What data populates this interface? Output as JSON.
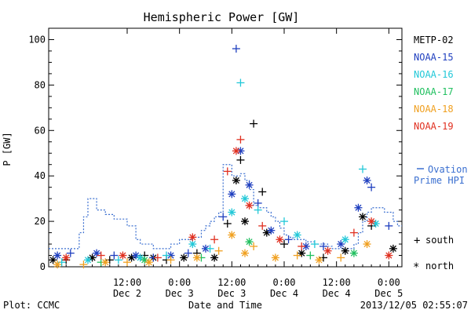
{
  "chart_data": {
    "type": "scatter",
    "title": "Hemispheric Power [GW]",
    "ylabel": "P [GW]",
    "xlabel": "Date and Time",
    "ylim": [
      0,
      105
    ],
    "xlim": [
      "2013-12-01 18:00",
      "2013-12-05 03:00"
    ],
    "yticks": [
      0,
      20,
      40,
      60,
      80,
      100
    ],
    "xticks": [
      {
        "t": "2013-12-02 12:00",
        "top": "12:00",
        "bottom": "Dec 2"
      },
      {
        "t": "2013-12-03 00:00",
        "top": "0:00",
        "bottom": "Dec 3"
      },
      {
        "t": "2013-12-03 12:00",
        "top": "12:00",
        "bottom": "Dec 3"
      },
      {
        "t": "2013-12-04 00:00",
        "top": "0:00",
        "bottom": "Dec 4"
      },
      {
        "t": "2013-12-04 12:00",
        "top": "12:00",
        "bottom": "Dec 4"
      },
      {
        "t": "2013-12-05 00:00",
        "top": "0:00",
        "bottom": "Dec 5"
      }
    ],
    "legend_position": "right",
    "marker_legend": {
      "south": "south",
      "north": "north"
    },
    "ovation_label_line1": "Ovation",
    "ovation_label_line2": "Prime HPI",
    "ovation_color": "#3a6fd0",
    "ovation_series": {
      "x": [
        "2013-12-01 18:00",
        "2013-12-02 00:00",
        "2013-12-02 01:00",
        "2013-12-02 02:00",
        "2013-12-02 03:00",
        "2013-12-02 04:00",
        "2013-12-02 05:00",
        "2013-12-02 06:00",
        "2013-12-02 07:00",
        "2013-12-02 08:00",
        "2013-12-02 09:00",
        "2013-12-02 10:00",
        "2013-12-02 11:00",
        "2013-12-02 12:00",
        "2013-12-02 13:00",
        "2013-12-02 14:00",
        "2013-12-02 15:00",
        "2013-12-02 16:00",
        "2013-12-02 17:00",
        "2013-12-02 18:00",
        "2013-12-02 19:00",
        "2013-12-02 20:00",
        "2013-12-02 21:00",
        "2013-12-02 22:00",
        "2013-12-02 23:00",
        "2013-12-03 00:00",
        "2013-12-03 01:00",
        "2013-12-03 02:00",
        "2013-12-03 03:00",
        "2013-12-03 04:00",
        "2013-12-03 05:00",
        "2013-12-03 06:00",
        "2013-12-03 07:00",
        "2013-12-03 08:00",
        "2013-12-03 09:00",
        "2013-12-03 10:00",
        "2013-12-03 11:00",
        "2013-12-03 12:00",
        "2013-12-03 13:00",
        "2013-12-03 14:00",
        "2013-12-03 15:00",
        "2013-12-03 16:00",
        "2013-12-03 17:00",
        "2013-12-03 18:00",
        "2013-12-03 19:00",
        "2013-12-03 20:00",
        "2013-12-03 21:00",
        "2013-12-03 22:00",
        "2013-12-03 23:00",
        "2013-12-04 00:00",
        "2013-12-04 01:00",
        "2013-12-04 02:00",
        "2013-12-04 03:00",
        "2013-12-04 04:00",
        "2013-12-04 05:00",
        "2013-12-04 06:00",
        "2013-12-04 07:00",
        "2013-12-04 08:00",
        "2013-12-04 09:00",
        "2013-12-04 10:00",
        "2013-12-04 11:00",
        "2013-12-04 12:00",
        "2013-12-04 13:00",
        "2013-12-04 14:00",
        "2013-12-04 15:00",
        "2013-12-04 16:00",
        "2013-12-04 17:00",
        "2013-12-04 18:00",
        "2013-12-04 19:00",
        "2013-12-04 20:00",
        "2013-12-04 21:00",
        "2013-12-04 22:00",
        "2013-12-04 23:00",
        "2013-12-05 00:00",
        "2013-12-05 01:00",
        "2013-12-05 02:00"
      ],
      "y": [
        8,
        8,
        15,
        22,
        30,
        30,
        25,
        25,
        23,
        23,
        21,
        21,
        21,
        18,
        18,
        12,
        10,
        10,
        10,
        8,
        8,
        8,
        8,
        10,
        10,
        12,
        12,
        12,
        13,
        13,
        16,
        18,
        20,
        22,
        24,
        45,
        45,
        40,
        40,
        41,
        38,
        34,
        27,
        26,
        26,
        24,
        22,
        20,
        17,
        14,
        13,
        12,
        12,
        12,
        11,
        11,
        10,
        10,
        10,
        9,
        8,
        8,
        8,
        8,
        8,
        10,
        15,
        20,
        24,
        26,
        26,
        26,
        24,
        24,
        20,
        18
      ]
    },
    "series": [
      {
        "name": "METP-02",
        "color": "#000000",
        "points": [
          {
            "t": "2013-12-01 19:00",
            "y": 3,
            "m": "star"
          },
          {
            "t": "2013-12-01 22:00",
            "y": 3,
            "m": "plus"
          },
          {
            "t": "2013-12-02 04:00",
            "y": 4,
            "m": "star"
          },
          {
            "t": "2013-12-02 08:00",
            "y": 3,
            "m": "plus"
          },
          {
            "t": "2013-12-02 13:00",
            "y": 4,
            "m": "star"
          },
          {
            "t": "2013-12-02 16:00",
            "y": 5,
            "m": "plus"
          },
          {
            "t": "2013-12-02 18:00",
            "y": 4,
            "m": "star"
          },
          {
            "t": "2013-12-02 21:00",
            "y": 3,
            "m": "plus"
          },
          {
            "t": "2013-12-03 01:00",
            "y": 4,
            "m": "star"
          },
          {
            "t": "2013-12-03 04:00",
            "y": 6,
            "m": "plus"
          },
          {
            "t": "2013-12-03 08:00",
            "y": 4,
            "m": "star"
          },
          {
            "t": "2013-12-03 11:00",
            "y": 19,
            "m": "plus"
          },
          {
            "t": "2013-12-03 13:00",
            "y": 38,
            "m": "star"
          },
          {
            "t": "2013-12-03 14:00",
            "y": 47,
            "m": "plus"
          },
          {
            "t": "2013-12-03 15:00",
            "y": 20,
            "m": "star"
          },
          {
            "t": "2013-12-03 17:00",
            "y": 63,
            "m": "plus"
          },
          {
            "t": "2013-12-03 19:00",
            "y": 33,
            "m": "plus"
          },
          {
            "t": "2013-12-03 20:00",
            "y": 15,
            "m": "star"
          },
          {
            "t": "2013-12-04 00:00",
            "y": 10,
            "m": "plus"
          },
          {
            "t": "2013-12-04 04:00",
            "y": 6,
            "m": "star"
          },
          {
            "t": "2013-12-04 09:00",
            "y": 4,
            "m": "plus"
          },
          {
            "t": "2013-12-04 14:00",
            "y": 7,
            "m": "star"
          },
          {
            "t": "2013-12-04 18:00",
            "y": 22,
            "m": "star"
          },
          {
            "t": "2013-12-04 20:00",
            "y": 18,
            "m": "plus"
          },
          {
            "t": "2013-12-05 01:00",
            "y": 8,
            "m": "star"
          }
        ]
      },
      {
        "name": "NOAA-15",
        "color": "#1f3fbf",
        "points": [
          {
            "t": "2013-12-01 20:00",
            "y": 5,
            "m": "star"
          },
          {
            "t": "2013-12-01 23:00",
            "y": 6,
            "m": "plus"
          },
          {
            "t": "2013-12-02 05:00",
            "y": 6,
            "m": "star"
          },
          {
            "t": "2013-12-02 09:00",
            "y": 5,
            "m": "plus"
          },
          {
            "t": "2013-12-02 14:00",
            "y": 5,
            "m": "star"
          },
          {
            "t": "2013-12-02 18:00",
            "y": 4,
            "m": "plus"
          },
          {
            "t": "2013-12-02 22:00",
            "y": 5,
            "m": "star"
          },
          {
            "t": "2013-12-03 02:00",
            "y": 6,
            "m": "plus"
          },
          {
            "t": "2013-12-03 06:00",
            "y": 8,
            "m": "star"
          },
          {
            "t": "2013-12-03 10:00",
            "y": 22,
            "m": "plus"
          },
          {
            "t": "2013-12-03 12:00",
            "y": 32,
            "m": "star"
          },
          {
            "t": "2013-12-03 13:00",
            "y": 96,
            "m": "plus"
          },
          {
            "t": "2013-12-03 14:00",
            "y": 51,
            "m": "star"
          },
          {
            "t": "2013-12-03 16:00",
            "y": 36,
            "m": "star"
          },
          {
            "t": "2013-12-03 18:00",
            "y": 28,
            "m": "plus"
          },
          {
            "t": "2013-12-03 21:00",
            "y": 16,
            "m": "star"
          },
          {
            "t": "2013-12-04 01:00",
            "y": 12,
            "m": "plus"
          },
          {
            "t": "2013-12-04 05:00",
            "y": 9,
            "m": "star"
          },
          {
            "t": "2013-12-04 09:00",
            "y": 9,
            "m": "plus"
          },
          {
            "t": "2013-12-04 13:00",
            "y": 10,
            "m": "star"
          },
          {
            "t": "2013-12-04 17:00",
            "y": 26,
            "m": "star"
          },
          {
            "t": "2013-12-04 19:00",
            "y": 38,
            "m": "star"
          },
          {
            "t": "2013-12-04 20:00",
            "y": 35,
            "m": "plus"
          },
          {
            "t": "2013-12-05 00:00",
            "y": 18,
            "m": "plus"
          }
        ]
      },
      {
        "name": "NOAA-16",
        "color": "#22c8d8",
        "points": [
          {
            "t": "2013-12-01 21:00",
            "y": 2,
            "m": "plus"
          },
          {
            "t": "2013-12-02 03:00",
            "y": 3,
            "m": "star"
          },
          {
            "t": "2013-12-02 10:00",
            "y": 3,
            "m": "plus"
          },
          {
            "t": "2013-12-02 15:00",
            "y": 4,
            "m": "star"
          },
          {
            "t": "2013-12-02 21:00",
            "y": 5,
            "m": "plus"
          },
          {
            "t": "2013-12-03 03:00",
            "y": 10,
            "m": "star"
          },
          {
            "t": "2013-12-03 07:00",
            "y": 8,
            "m": "plus"
          },
          {
            "t": "2013-12-03 12:00",
            "y": 24,
            "m": "star"
          },
          {
            "t": "2013-12-03 14:00",
            "y": 81,
            "m": "plus"
          },
          {
            "t": "2013-12-03 15:00",
            "y": 30,
            "m": "star"
          },
          {
            "t": "2013-12-03 18:00",
            "y": 25,
            "m": "plus"
          },
          {
            "t": "2013-12-04 00:00",
            "y": 20,
            "m": "plus"
          },
          {
            "t": "2013-12-04 03:00",
            "y": 14,
            "m": "star"
          },
          {
            "t": "2013-12-04 07:00",
            "y": 10,
            "m": "plus"
          },
          {
            "t": "2013-12-04 14:00",
            "y": 12,
            "m": "star"
          },
          {
            "t": "2013-12-04 18:00",
            "y": 43,
            "m": "plus"
          },
          {
            "t": "2013-12-04 21:00",
            "y": 19,
            "m": "star"
          }
        ]
      },
      {
        "name": "NOAA-17",
        "color": "#22c060",
        "points": [
          {
            "t": "2013-12-02 06:00",
            "y": 2,
            "m": "plus"
          },
          {
            "t": "2013-12-02 16:00",
            "y": 3,
            "m": "star"
          },
          {
            "t": "2013-12-03 05:00",
            "y": 4,
            "m": "plus"
          },
          {
            "t": "2013-12-03 16:00",
            "y": 11,
            "m": "star"
          },
          {
            "t": "2013-12-04 06:00",
            "y": 5,
            "m": "plus"
          },
          {
            "t": "2013-12-04 16:00",
            "y": 6,
            "m": "star"
          }
        ]
      },
      {
        "name": "NOAA-18",
        "color": "#f0a020",
        "points": [
          {
            "t": "2013-12-01 20:00",
            "y": 1,
            "m": "star"
          },
          {
            "t": "2013-12-02 02:00",
            "y": 1,
            "m": "plus"
          },
          {
            "t": "2013-12-02 07:00",
            "y": 2,
            "m": "star"
          },
          {
            "t": "2013-12-02 12:00",
            "y": 2,
            "m": "plus"
          },
          {
            "t": "2013-12-02 17:00",
            "y": 2,
            "m": "star"
          },
          {
            "t": "2013-12-02 22:00",
            "y": 3,
            "m": "plus"
          },
          {
            "t": "2013-12-03 04:00",
            "y": 4,
            "m": "star"
          },
          {
            "t": "2013-12-03 09:00",
            "y": 7,
            "m": "plus"
          },
          {
            "t": "2013-12-03 12:00",
            "y": 14,
            "m": "star"
          },
          {
            "t": "2013-12-03 15:00",
            "y": 6,
            "m": "star"
          },
          {
            "t": "2013-12-03 17:00",
            "y": 9,
            "m": "plus"
          },
          {
            "t": "2013-12-03 22:00",
            "y": 4,
            "m": "star"
          },
          {
            "t": "2013-12-04 03:00",
            "y": 5,
            "m": "plus"
          },
          {
            "t": "2013-12-04 08:00",
            "y": 3,
            "m": "star"
          },
          {
            "t": "2013-12-04 13:00",
            "y": 4,
            "m": "plus"
          },
          {
            "t": "2013-12-04 19:00",
            "y": 10,
            "m": "star"
          }
        ]
      },
      {
        "name": "NOAA-19",
        "color": "#e03020",
        "points": [
          {
            "t": "2013-12-01 22:00",
            "y": 4,
            "m": "star"
          },
          {
            "t": "2013-12-02 06:00",
            "y": 5,
            "m": "plus"
          },
          {
            "t": "2013-12-02 11:00",
            "y": 5,
            "m": "star"
          },
          {
            "t": "2013-12-02 19:00",
            "y": 4,
            "m": "plus"
          },
          {
            "t": "2013-12-03 03:00",
            "y": 13,
            "m": "star"
          },
          {
            "t": "2013-12-03 08:00",
            "y": 12,
            "m": "plus"
          },
          {
            "t": "2013-12-03 11:00",
            "y": 42,
            "m": "plus"
          },
          {
            "t": "2013-12-03 13:00",
            "y": 51,
            "m": "star"
          },
          {
            "t": "2013-12-03 14:00",
            "y": 56,
            "m": "plus"
          },
          {
            "t": "2013-12-03 16:00",
            "y": 27,
            "m": "star"
          },
          {
            "t": "2013-12-03 19:00",
            "y": 18,
            "m": "plus"
          },
          {
            "t": "2013-12-03 23:00",
            "y": 12,
            "m": "star"
          },
          {
            "t": "2013-12-04 04:00",
            "y": 9,
            "m": "plus"
          },
          {
            "t": "2013-12-04 10:00",
            "y": 7,
            "m": "star"
          },
          {
            "t": "2013-12-04 16:00",
            "y": 15,
            "m": "plus"
          },
          {
            "t": "2013-12-04 20:00",
            "y": 20,
            "m": "star"
          },
          {
            "t": "2013-12-05 00:00",
            "y": 5,
            "m": "star"
          }
        ]
      }
    ]
  },
  "footer": {
    "plot_credit": "Plot: CCMC",
    "timestamp": "2013/12/05 02:55:07"
  }
}
